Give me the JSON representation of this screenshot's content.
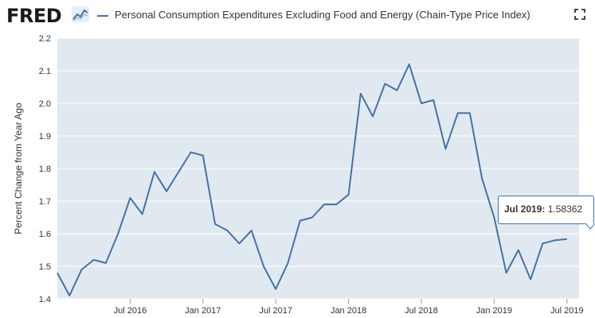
{
  "header": {
    "logo_text": "FRED",
    "series_title": "Personal Consumption Expenditures Excluding Food and Energy (Chain-Type Price Index)",
    "fullscreen_icon": "fullscreen-icon"
  },
  "tooltip": {
    "date": "Jul 2019:",
    "value": "1.58362"
  },
  "colors": {
    "series": "#4572a7",
    "plot_background": "#e1e9f0",
    "gridline": "#ffffff"
  },
  "chart_data": {
    "type": "line",
    "ylabel": "Percent Change from Year Ago",
    "ylim": [
      1.4,
      2.2
    ],
    "yticks": [
      1.4,
      1.5,
      1.6,
      1.7,
      1.8,
      1.9,
      2.0,
      2.1,
      2.2
    ],
    "ytick_labels": [
      "1.4",
      "1.5",
      "1.6",
      "1.7",
      "1.8",
      "1.9",
      "2.0",
      "2.1",
      "2.2"
    ],
    "xlim": [
      "2016-01",
      "2019-08"
    ],
    "xticks": [
      {
        "label": "Jul 2016",
        "x": "2016-07"
      },
      {
        "label": "Jan 2017",
        "x": "2017-01"
      },
      {
        "label": "Jul 2017",
        "x": "2017-07"
      },
      {
        "label": "Jan 2018",
        "x": "2018-01"
      },
      {
        "label": "Jul 2018",
        "x": "2018-07"
      },
      {
        "label": "Jan 2019",
        "x": "2019-01"
      },
      {
        "label": "Jul 2019",
        "x": "2019-07"
      }
    ],
    "grid": true,
    "series": [
      {
        "x": [
          "2016-01",
          "2016-02",
          "2016-03",
          "2016-04",
          "2016-05",
          "2016-06",
          "2016-07",
          "2016-08",
          "2016-09",
          "2016-10",
          "2016-11",
          "2016-12",
          "2017-01",
          "2017-02",
          "2017-03",
          "2017-04",
          "2017-05",
          "2017-06",
          "2017-07",
          "2017-08",
          "2017-09",
          "2017-10",
          "2017-11",
          "2017-12",
          "2018-01",
          "2018-02",
          "2018-03",
          "2018-04",
          "2018-05",
          "2018-06",
          "2018-07",
          "2018-08",
          "2018-09",
          "2018-10",
          "2018-11",
          "2018-12",
          "2019-01",
          "2019-02",
          "2019-03",
          "2019-04",
          "2019-05",
          "2019-06",
          "2019-07"
        ],
        "values": [
          1.48,
          1.41,
          1.49,
          1.52,
          1.51,
          1.6,
          1.71,
          1.66,
          1.79,
          1.73,
          1.79,
          1.85,
          1.84,
          1.63,
          1.61,
          1.57,
          1.61,
          1.5,
          1.43,
          1.51,
          1.64,
          1.65,
          1.69,
          1.69,
          1.72,
          2.03,
          1.96,
          2.06,
          2.04,
          2.12,
          2.0,
          2.01,
          1.86,
          1.97,
          1.97,
          1.77,
          1.65,
          1.48,
          1.55,
          1.46,
          1.57,
          1.58,
          1.58362
        ]
      }
    ]
  }
}
